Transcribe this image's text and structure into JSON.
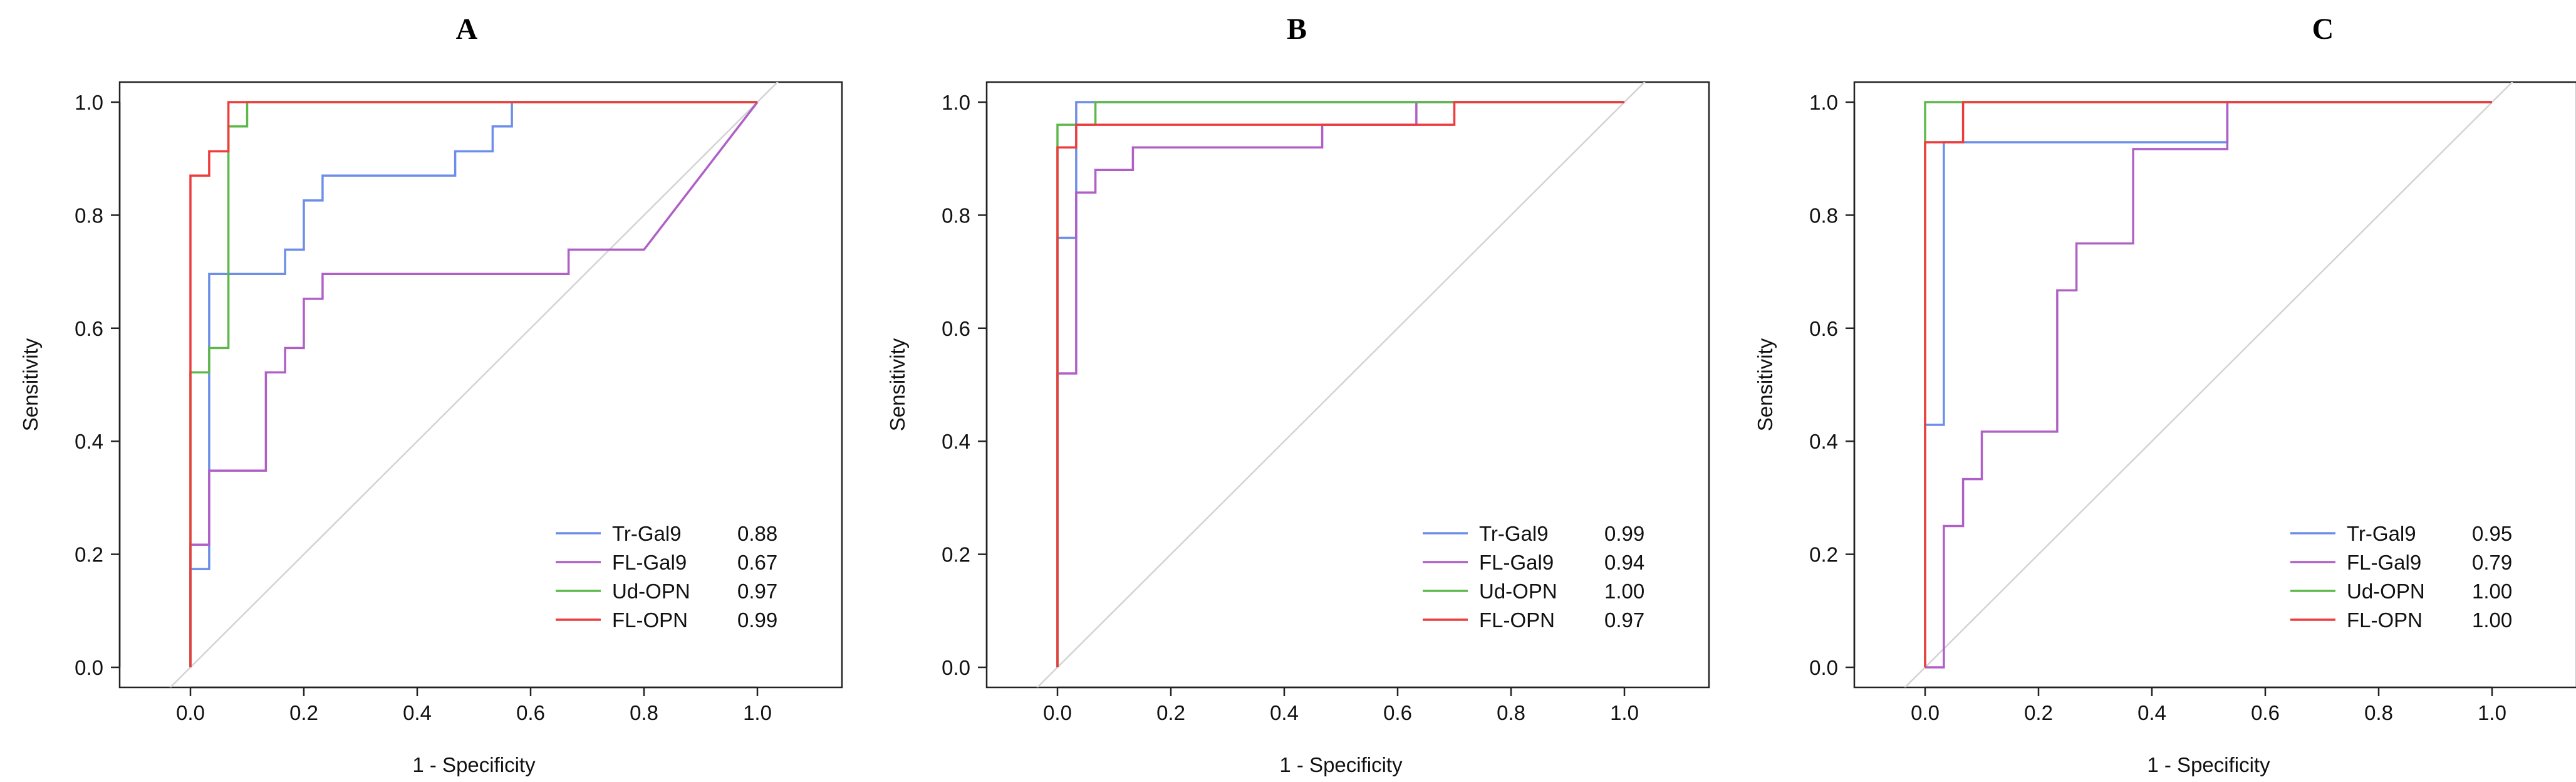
{
  "chart_data": [
    {
      "type": "line",
      "title": "A",
      "xlabel": "1 - Specificity",
      "ylabel": "Sensitivity",
      "xlim": [
        -0.1,
        1.1
      ],
      "ylim": [
        -0.04,
        1.04
      ],
      "xticks": [
        "0.0",
        "0.2",
        "0.4",
        "0.6",
        "0.8",
        "1.0"
      ],
      "yticks": [
        "0.0",
        "0.2",
        "0.4",
        "0.6",
        "0.8",
        "1.0"
      ],
      "legend_position": "bottom-right",
      "series": [
        {
          "name": "Tr-Gal9",
          "auc": "0.88",
          "color": "#6C8EE8",
          "x": [
            0,
            0,
            0.033,
            0.033,
            0.167,
            0.167,
            0.2,
            0.2,
            0.233,
            0.233,
            0.467,
            0.467,
            0.533,
            0.533,
            0.567,
            0.567,
            1.0
          ],
          "y": [
            0,
            0.174,
            0.174,
            0.696,
            0.696,
            0.739,
            0.739,
            0.826,
            0.826,
            0.87,
            0.87,
            0.913,
            0.913,
            0.957,
            0.957,
            1.0,
            1.0
          ]
        },
        {
          "name": "FL-Gal9",
          "auc": "0.67",
          "color": "#B05FC6",
          "x": [
            0,
            0,
            0.033,
            0.033,
            0.133,
            0.133,
            0.167,
            0.167,
            0.2,
            0.2,
            0.233,
            0.233,
            0.667,
            0.667,
            0.8,
            1.0
          ],
          "y": [
            0,
            0.217,
            0.217,
            0.348,
            0.348,
            0.522,
            0.522,
            0.565,
            0.565,
            0.652,
            0.652,
            0.696,
            0.696,
            0.739,
            0.739,
            1.0
          ]
        },
        {
          "name": "Ud-OPN",
          "auc": "0.97",
          "color": "#5DB84A",
          "x": [
            0,
            0,
            0.033,
            0.033,
            0.067,
            0.067,
            0.1,
            0.1,
            1.0
          ],
          "y": [
            0,
            0.522,
            0.522,
            0.565,
            0.565,
            0.957,
            0.957,
            1.0,
            1.0
          ]
        },
        {
          "name": "FL-OPN",
          "auc": "0.99",
          "color": "#EE3B3B",
          "x": [
            0,
            0,
            0.033,
            0.033,
            0.067,
            0.067,
            1.0
          ],
          "y": [
            0,
            0.87,
            0.87,
            0.913,
            0.913,
            1.0,
            1.0
          ]
        }
      ]
    },
    {
      "type": "line",
      "title": "B",
      "xlabel": "1 - Specificity",
      "ylabel": "Sensitivity",
      "xlim": [
        -0.1,
        1.1
      ],
      "ylim": [
        -0.04,
        1.04
      ],
      "xticks": [
        "0.0",
        "0.2",
        "0.4",
        "0.6",
        "0.8",
        "1.0"
      ],
      "yticks": [
        "0.0",
        "0.2",
        "0.4",
        "0.6",
        "0.8",
        "1.0"
      ],
      "legend_position": "bottom-right",
      "series": [
        {
          "name": "Tr-Gal9",
          "auc": "0.99",
          "color": "#6C8EE8",
          "x": [
            0,
            0,
            0.033,
            0.033,
            0.067,
            1.0
          ],
          "y": [
            0,
            0.76,
            0.76,
            1.0,
            1.0,
            1.0
          ]
        },
        {
          "name": "FL-Gal9",
          "auc": "0.94",
          "color": "#B05FC6",
          "x": [
            0,
            0,
            0.033,
            0.033,
            0.067,
            0.067,
            0.133,
            0.133,
            0.467,
            0.467,
            0.633,
            0.633,
            1.0
          ],
          "y": [
            0,
            0.52,
            0.52,
            0.84,
            0.84,
            0.88,
            0.88,
            0.92,
            0.92,
            0.96,
            0.96,
            1.0,
            1.0
          ]
        },
        {
          "name": "Ud-OPN",
          "auc": "1.00",
          "color": "#5DB84A",
          "x": [
            0,
            0,
            0.067,
            0.067,
            1.0
          ],
          "y": [
            0,
            0.96,
            0.96,
            1.0,
            1.0
          ]
        },
        {
          "name": "FL-OPN",
          "auc": "0.97",
          "color": "#EE3B3B",
          "x": [
            0,
            0,
            0.033,
            0.033,
            0.7,
            0.7,
            1.0
          ],
          "y": [
            0,
            0.92,
            0.92,
            0.96,
            0.96,
            1.0,
            1.0
          ]
        }
      ]
    },
    {
      "type": "line",
      "title": "C",
      "xlabel": "1 - Specificity",
      "ylabel": "Sensitivity",
      "xlim": [
        -0.1,
        1.1
      ],
      "ylim": [
        -0.04,
        1.04
      ],
      "xticks": [
        "0.0",
        "0.2",
        "0.4",
        "0.6",
        "0.8",
        "1.0"
      ],
      "yticks": [
        "0.0",
        "0.2",
        "0.4",
        "0.6",
        "0.8",
        "1.0"
      ],
      "legend_position": "bottom-right",
      "series": [
        {
          "name": "Tr-Gal9",
          "auc": "0.95",
          "color": "#6C8EE8",
          "x": [
            0,
            0,
            0.033,
            0.033,
            0.533,
            0.533,
            1.0
          ],
          "y": [
            0,
            0.429,
            0.429,
            0.929,
            0.929,
            1.0,
            1.0
          ]
        },
        {
          "name": "FL-Gal9",
          "auc": "0.79",
          "color": "#B05FC6",
          "x": [
            0,
            0,
            0.033,
            0.033,
            0.067,
            0.067,
            0.1,
            0.1,
            0.233,
            0.233,
            0.267,
            0.267,
            0.367,
            0.367,
            0.533,
            0.533,
            1.0
          ],
          "y": [
            0,
            0,
            0,
            0.25,
            0.25,
            0.333,
            0.333,
            0.417,
            0.417,
            0.667,
            0.667,
            0.75,
            0.75,
            0.917,
            0.917,
            1.0,
            1.0
          ]
        },
        {
          "name": "Ud-OPN",
          "auc": "1.00",
          "color": "#5DB84A",
          "x": [
            0,
            0,
            1.0
          ],
          "y": [
            0,
            1.0,
            1.0
          ]
        },
        {
          "name": "FL-OPN",
          "auc": "1.00",
          "color": "#EE3B3B",
          "x": [
            0,
            0,
            0.067,
            0.067,
            1.0
          ],
          "y": [
            0,
            0.929,
            0.929,
            1.0,
            1.0
          ]
        }
      ]
    }
  ]
}
